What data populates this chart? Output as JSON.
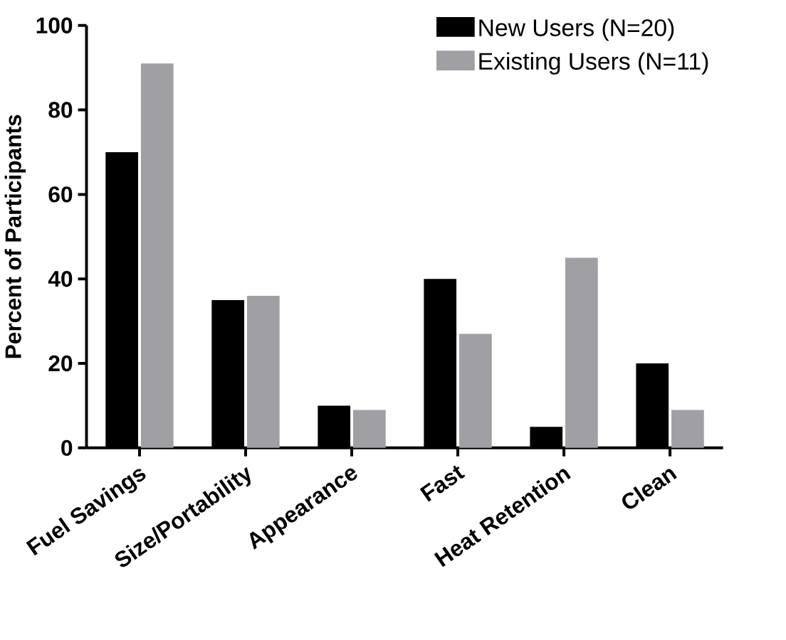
{
  "chart_data": {
    "type": "bar",
    "ylabel": "Percent of Participants",
    "categories": [
      "Fuel Savings",
      "Size/Portability",
      "Appearance",
      "Fast",
      "Heat Retention",
      "Clean"
    ],
    "series": [
      {
        "name": "New Users (N=20)",
        "color": "#000000",
        "values": [
          70,
          35,
          10,
          40,
          5,
          20
        ]
      },
      {
        "name": "Existing Users (N=11)",
        "color": "#a0a0a4",
        "values": [
          91,
          36,
          9,
          27,
          45,
          9
        ]
      }
    ],
    "ylim": [
      0,
      100
    ],
    "yticks": [
      0,
      20,
      40,
      60,
      80,
      100
    ],
    "legend": "top right"
  }
}
